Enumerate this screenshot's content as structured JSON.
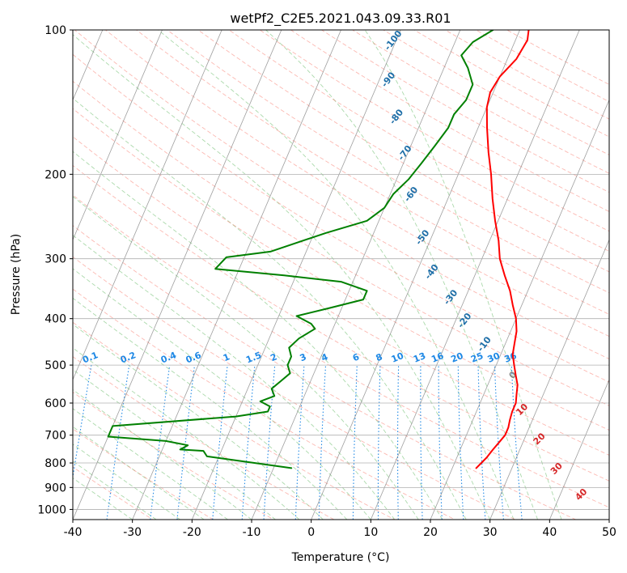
{
  "chart_data": {
    "type": "line",
    "chart_kind": "skew-T log-p diagram",
    "title": "wetPf2_C2E5.2021.043.09.33.R01",
    "xlabel": "Temperature (°C)",
    "ylabel": "Pressure (hPa)",
    "xlim": [
      -40,
      50
    ],
    "ylim": [
      1050,
      100
    ],
    "yscale": "log",
    "x_ticks": [
      -40,
      -30,
      -20,
      -10,
      0,
      10,
      20,
      30,
      40,
      50
    ],
    "y_ticks": [
      100,
      200,
      300,
      400,
      500,
      600,
      700,
      800,
      900,
      1000
    ],
    "grid": true,
    "colors": {
      "temperature": "#ff0000",
      "dewpoint": "#008000",
      "isotherm": "#7f7f7f",
      "dry_adiabat": "#fa8072",
      "moist_adiabat": "#2ca02c",
      "mixing_ratio": "#1e88e5",
      "label_dry": "#1f6fa8",
      "label_moist": "#d62728"
    },
    "series": [
      {
        "key": "temperature",
        "points": [
          [
            1.5,
            100
          ],
          [
            2.0,
            105
          ],
          [
            1.5,
            115
          ],
          [
            0,
            125
          ],
          [
            -0.5,
            135
          ],
          [
            0,
            145
          ],
          [
            1.5,
            160
          ],
          [
            3.5,
            180
          ],
          [
            5.5,
            200
          ],
          [
            7.5,
            225
          ],
          [
            9.5,
            250
          ],
          [
            11.5,
            275
          ],
          [
            13,
            300
          ],
          [
            15,
            325
          ],
          [
            17,
            350
          ],
          [
            18.5,
            375
          ],
          [
            20,
            400
          ],
          [
            21,
            425
          ],
          [
            21.5,
            450
          ],
          [
            22,
            475
          ],
          [
            23,
            500
          ],
          [
            24,
            525
          ],
          [
            25,
            550
          ],
          [
            25.5,
            575
          ],
          [
            26,
            600
          ],
          [
            26,
            625
          ],
          [
            26.2,
            650
          ],
          [
            26.5,
            675
          ],
          [
            26.5,
            700
          ],
          [
            26,
            725
          ],
          [
            25.5,
            750
          ],
          [
            25,
            780
          ],
          [
            24.5,
            800
          ],
          [
            24,
            820
          ]
        ]
      },
      {
        "key": "dewpoint",
        "points": [
          [
            -4.5,
            100
          ],
          [
            -7,
            106
          ],
          [
            -8,
            113
          ],
          [
            -6,
            120
          ],
          [
            -4,
            130
          ],
          [
            -4,
            140
          ],
          [
            -5,
            150
          ],
          [
            -5,
            160
          ],
          [
            -6,
            175
          ],
          [
            -7,
            190
          ],
          [
            -8,
            205
          ],
          [
            -9.5,
            220
          ],
          [
            -10,
            235
          ],
          [
            -12,
            250
          ],
          [
            -18,
            265
          ],
          [
            -26,
            290
          ],
          [
            -33,
            298
          ],
          [
            -34,
            315
          ],
          [
            -22,
            325
          ],
          [
            -12,
            335
          ],
          [
            -7,
            350
          ],
          [
            -7,
            365
          ],
          [
            -12,
            380
          ],
          [
            -17,
            395
          ],
          [
            -14,
            410
          ],
          [
            -13,
            420
          ],
          [
            -15,
            440
          ],
          [
            -16,
            460
          ],
          [
            -15,
            480
          ],
          [
            -15,
            500
          ],
          [
            -14,
            520
          ],
          [
            -15,
            540
          ],
          [
            -16,
            560
          ],
          [
            -15,
            580
          ],
          [
            -17,
            595
          ],
          [
            -15,
            610
          ],
          [
            -15,
            625
          ],
          [
            -20,
            640
          ],
          [
            -40,
            670
          ],
          [
            -40,
            705
          ],
          [
            -30,
            720
          ],
          [
            -26,
            735
          ],
          [
            -27,
            750
          ],
          [
            -23,
            755
          ],
          [
            -22,
            775
          ],
          [
            -7,
            820
          ]
        ]
      }
    ],
    "mixing_ratio_labels": [
      "0.1",
      "0.2",
      "0.4",
      "0.6",
      "1",
      "1.5",
      "2",
      "3",
      "4",
      "6",
      "8",
      "10",
      "13",
      "16",
      "20",
      "25",
      "30",
      "36"
    ],
    "dry_adiabat_labels": [
      "-100",
      "-90",
      "-80",
      "-70",
      "-60",
      "-50",
      "-40",
      "-30",
      "-20",
      "-10"
    ],
    "moist_adiabat_labels": [
      "0",
      "10",
      "20",
      "30",
      "40"
    ]
  }
}
